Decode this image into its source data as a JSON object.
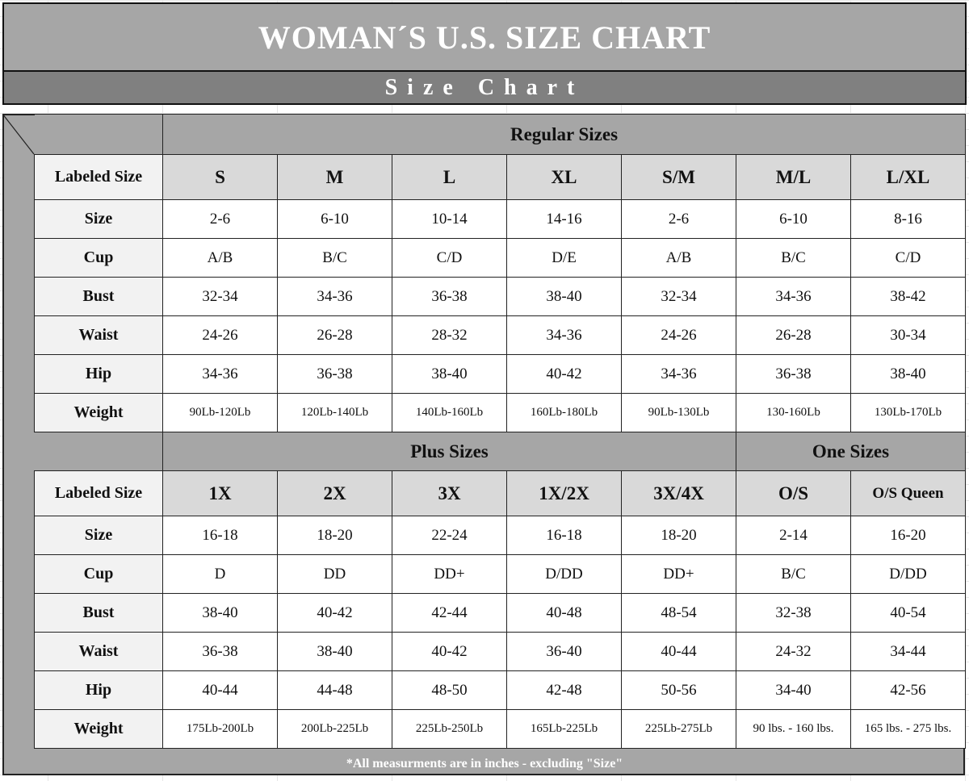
{
  "title": "WOMAN´S  U.S. SIZE CHART",
  "subtitle": "Size Chart",
  "regular": {
    "section_label": "Regular Sizes",
    "header_label": "Labeled Size",
    "columns": [
      "S",
      "M",
      "L",
      "XL",
      "S/M",
      "M/L",
      "L/XL"
    ],
    "rows": [
      {
        "label": "Size",
        "values": [
          "2-6",
          "6-10",
          "10-14",
          "14-16",
          "2-6",
          "6-10",
          "8-16"
        ]
      },
      {
        "label": "Cup",
        "values": [
          "A/B",
          "B/C",
          "C/D",
          "D/E",
          "A/B",
          "B/C",
          "C/D"
        ]
      },
      {
        "label": "Bust",
        "values": [
          "32-34",
          "34-36",
          "36-38",
          "38-40",
          "32-34",
          "34-36",
          "38-42"
        ]
      },
      {
        "label": "Waist",
        "values": [
          "24-26",
          "26-28",
          "28-32",
          "34-36",
          "24-26",
          "26-28",
          "30-34"
        ]
      },
      {
        "label": "Hip",
        "values": [
          "34-36",
          "36-38",
          "38-40",
          "40-42",
          "34-36",
          "36-38",
          "38-40"
        ]
      },
      {
        "label": "Weight",
        "values": [
          "90Lb-120Lb",
          "120Lb-140Lb",
          "140Lb-160Lb",
          "160Lb-180Lb",
          "90Lb-130Lb",
          "130-160Lb",
          "130Lb-170Lb"
        ]
      }
    ]
  },
  "plus": {
    "section_label": "Plus Sizes",
    "one_section_label": "One Sizes",
    "header_label": "Labeled Size",
    "columns": [
      "1X",
      "2X",
      "3X",
      "1X/2X",
      "3X/4X",
      "O/S",
      "O/S Queen"
    ],
    "rows": [
      {
        "label": "Size",
        "values": [
          "16-18",
          "18-20",
          "22-24",
          "16-18",
          "18-20",
          "2-14",
          "16-20"
        ]
      },
      {
        "label": "Cup",
        "values": [
          "D",
          "DD",
          "DD+",
          "D/DD",
          "DD+",
          "B/C",
          "D/DD"
        ]
      },
      {
        "label": "Bust",
        "values": [
          "38-40",
          "40-42",
          "42-44",
          "40-48",
          "48-54",
          "32-38",
          "40-54"
        ]
      },
      {
        "label": "Waist",
        "values": [
          "36-38",
          "38-40",
          "40-42",
          "36-40",
          "40-44",
          "24-32",
          "34-44"
        ]
      },
      {
        "label": "Hip",
        "values": [
          "40-44",
          "44-48",
          "48-50",
          "42-48",
          "50-56",
          "34-40",
          "42-56"
        ]
      },
      {
        "label": "Weight",
        "values": [
          "175Lb-200Lb",
          "200Lb-225Lb",
          "225Lb-250Lb",
          "165Lb-225Lb",
          "225Lb-275Lb",
          "90 lbs. - 160 lbs.",
          "165 lbs. - 275 lbs."
        ]
      }
    ]
  },
  "footer_note": "*All measurments are in inches - excluding \"Size\""
}
